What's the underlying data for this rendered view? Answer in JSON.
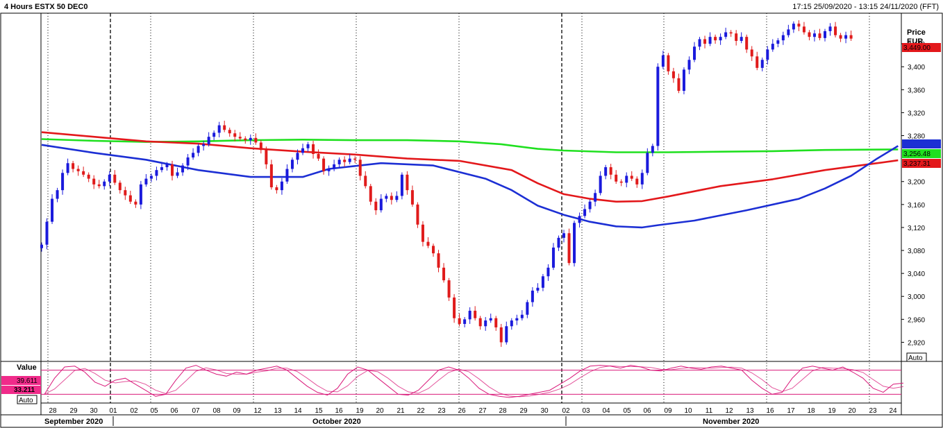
{
  "header": {
    "title": "4 Hours ESTX 50 DEC0",
    "range": "17:15 25/09/2020 - 13:15 24/11/2020 (FFT)"
  },
  "price_axis": {
    "label": "Price",
    "unit": "EUR",
    "auto_label": "Auto",
    "ticks": [
      "3,440",
      "3,400",
      "3,360",
      "3,320",
      "3,280",
      "3,200",
      "3,160",
      "3,120",
      "3,080",
      "3,040",
      "3,000",
      "2,960",
      "2,920"
    ]
  },
  "tags": {
    "last_price": "3,449.00",
    "ma_green": "3,256.48",
    "ma_red": "3,237.31"
  },
  "indicator": {
    "label": "Value",
    "value_1": "39.611",
    "value_2": "33.211",
    "auto_label": "Auto",
    "upper_level": 80,
    "lower_level": 20
  },
  "colors": {
    "up_candle": "#1a1adc",
    "down_candle": "#e01b1b",
    "ma_blue": "#1c2fd4",
    "ma_red": "#e3181b",
    "ma_green": "#1fe01f",
    "stoch": "#d9197a",
    "last_price_tag": "#e3181b",
    "blue_tag": "#1c2fd4",
    "green_tag": "#1fe01f",
    "red_tag": "#e3181b",
    "value_tag": "#f02b8a"
  },
  "chart_data": {
    "type": "candlestick",
    "instrument": "ESTX 50 DEC0",
    "timeframe": "4 Hours",
    "ylim": [
      2900,
      3480
    ],
    "grid": false,
    "x_ticks": [
      "28",
      "29",
      "30",
      "01",
      "02",
      "05",
      "06",
      "07",
      "08",
      "09",
      "12",
      "13",
      "14",
      "15",
      "16",
      "19",
      "20",
      "21",
      "22",
      "23",
      "26",
      "27",
      "28",
      "29",
      "30",
      "02",
      "03",
      "04",
      "05",
      "06",
      "09",
      "10",
      "11",
      "12",
      "13",
      "16",
      "17",
      "18",
      "19",
      "20",
      "23",
      "24"
    ],
    "month_labels": [
      "September 2020",
      "October 2020",
      "November 2020"
    ],
    "close_path": [
      [
        0,
        3090
      ],
      [
        1,
        3130
      ],
      [
        2,
        3170
      ],
      [
        3,
        3185
      ],
      [
        4,
        3215
      ],
      [
        5,
        3232
      ],
      [
        6,
        3222
      ],
      [
        7,
        3218
      ],
      [
        8,
        3212
      ],
      [
        9,
        3205
      ],
      [
        10,
        3195
      ],
      [
        11,
        3192
      ],
      [
        12,
        3200
      ],
      [
        13,
        3212
      ],
      [
        14,
        3198
      ],
      [
        15,
        3185
      ],
      [
        16,
        3176
      ],
      [
        17,
        3165
      ],
      [
        18,
        3160
      ],
      [
        19,
        3195
      ],
      [
        20,
        3205
      ],
      [
        21,
        3210
      ],
      [
        22,
        3220
      ],
      [
        23,
        3225
      ],
      [
        24,
        3230
      ],
      [
        25,
        3210
      ],
      [
        26,
        3216
      ],
      [
        27,
        3228
      ],
      [
        28,
        3242
      ],
      [
        29,
        3250
      ],
      [
        30,
        3262
      ],
      [
        31,
        3265
      ],
      [
        32,
        3278
      ],
      [
        33,
        3285
      ],
      [
        34,
        3298
      ],
      [
        35,
        3290
      ],
      [
        36,
        3284
      ],
      [
        37,
        3278
      ],
      [
        38,
        3275
      ],
      [
        39,
        3272
      ],
      [
        40,
        3276
      ],
      [
        41,
        3268
      ],
      [
        42,
        3255
      ],
      [
        43,
        3230
      ],
      [
        44,
        3190
      ],
      [
        45,
        3185
      ],
      [
        46,
        3200
      ],
      [
        47,
        3222
      ],
      [
        48,
        3238
      ],
      [
        49,
        3250
      ],
      [
        50,
        3258
      ],
      [
        51,
        3265
      ],
      [
        52,
        3248
      ],
      [
        53,
        3240
      ],
      [
        54,
        3218
      ],
      [
        55,
        3222
      ],
      [
        56,
        3230
      ],
      [
        57,
        3238
      ],
      [
        58,
        3234
      ],
      [
        59,
        3240
      ],
      [
        60,
        3238
      ],
      [
        61,
        3210
      ],
      [
        62,
        3192
      ],
      [
        63,
        3165
      ],
      [
        64,
        3150
      ],
      [
        65,
        3170
      ],
      [
        66,
        3175
      ],
      [
        67,
        3168
      ],
      [
        68,
        3175
      ],
      [
        69,
        3212
      ],
      [
        70,
        3185
      ],
      [
        71,
        3160
      ],
      [
        72,
        3125
      ],
      [
        73,
        3095
      ],
      [
        74,
        3088
      ],
      [
        75,
        3075
      ],
      [
        76,
        3050
      ],
      [
        77,
        3028
      ],
      [
        78,
        2998
      ],
      [
        79,
        2962
      ],
      [
        80,
        2952
      ],
      [
        81,
        2960
      ],
      [
        82,
        2975
      ],
      [
        83,
        2962
      ],
      [
        84,
        2948
      ],
      [
        85,
        2958
      ],
      [
        86,
        2962
      ],
      [
        87,
        2946
      ],
      [
        88,
        2920
      ],
      [
        89,
        2948
      ],
      [
        90,
        2958
      ],
      [
        91,
        2962
      ],
      [
        92,
        2968
      ],
      [
        93,
        2990
      ],
      [
        94,
        3010
      ],
      [
        95,
        3015
      ],
      [
        96,
        3035
      ],
      [
        97,
        3050
      ],
      [
        98,
        3085
      ],
      [
        99,
        3102
      ],
      [
        100,
        3110
      ],
      [
        101,
        3058
      ],
      [
        102,
        3128
      ],
      [
        103,
        3140
      ],
      [
        104,
        3152
      ],
      [
        105,
        3165
      ],
      [
        106,
        3180
      ],
      [
        107,
        3210
      ],
      [
        108,
        3225
      ],
      [
        109,
        3212
      ],
      [
        110,
        3200
      ],
      [
        111,
        3198
      ],
      [
        112,
        3210
      ],
      [
        113,
        3205
      ],
      [
        114,
        3195
      ],
      [
        115,
        3215
      ],
      [
        116,
        3250
      ],
      [
        117,
        3262
      ],
      [
        118,
        3400
      ],
      [
        119,
        3420
      ],
      [
        120,
        3392
      ],
      [
        121,
        3380
      ],
      [
        122,
        3358
      ],
      [
        123,
        3395
      ],
      [
        124,
        3412
      ],
      [
        125,
        3435
      ],
      [
        126,
        3448
      ],
      [
        127,
        3440
      ],
      [
        128,
        3452
      ],
      [
        129,
        3446
      ],
      [
        130,
        3452
      ],
      [
        131,
        3460
      ],
      [
        132,
        3458
      ],
      [
        133,
        3445
      ],
      [
        134,
        3452
      ],
      [
        135,
        3430
      ],
      [
        136,
        3418
      ],
      [
        137,
        3398
      ],
      [
        138,
        3412
      ],
      [
        139,
        3430
      ],
      [
        140,
        3440
      ],
      [
        141,
        3446
      ],
      [
        142,
        3455
      ],
      [
        143,
        3465
      ],
      [
        144,
        3475
      ],
      [
        145,
        3470
      ],
      [
        146,
        3460
      ],
      [
        147,
        3452
      ],
      [
        148,
        3458
      ],
      [
        149,
        3450
      ],
      [
        150,
        3462
      ],
      [
        151,
        3470
      ],
      [
        152,
        3455
      ],
      [
        153,
        3449
      ],
      [
        154,
        3455
      ],
      [
        155,
        3449
      ]
    ],
    "ma_blue": [
      [
        0,
        3264
      ],
      [
        10,
        3250
      ],
      [
        20,
        3238
      ],
      [
        30,
        3220
      ],
      [
        40,
        3208
      ],
      [
        50,
        3208
      ],
      [
        55,
        3222
      ],
      [
        65,
        3232
      ],
      [
        75,
        3228
      ],
      [
        85,
        3205
      ],
      [
        90,
        3185
      ],
      [
        95,
        3158
      ],
      [
        100,
        3142
      ],
      [
        105,
        3130
      ],
      [
        110,
        3122
      ],
      [
        115,
        3120
      ],
      [
        118,
        3124
      ],
      [
        125,
        3132
      ],
      [
        135,
        3150
      ],
      [
        145,
        3170
      ],
      [
        150,
        3188
      ],
      [
        155,
        3210
      ],
      [
        160,
        3240
      ],
      [
        164,
        3262
      ]
    ],
    "ma_red": [
      [
        0,
        3286
      ],
      [
        10,
        3278
      ],
      [
        20,
        3270
      ],
      [
        30,
        3266
      ],
      [
        40,
        3258
      ],
      [
        50,
        3252
      ],
      [
        60,
        3247
      ],
      [
        70,
        3240
      ],
      [
        80,
        3236
      ],
      [
        90,
        3220
      ],
      [
        95,
        3197
      ],
      [
        100,
        3178
      ],
      [
        105,
        3170
      ],
      [
        110,
        3165
      ],
      [
        115,
        3166
      ],
      [
        120,
        3174
      ],
      [
        130,
        3192
      ],
      [
        140,
        3204
      ],
      [
        150,
        3220
      ],
      [
        160,
        3232
      ],
      [
        164,
        3237
      ]
    ],
    "ma_green": [
      [
        0,
        3274
      ],
      [
        10,
        3271
      ],
      [
        20,
        3269
      ],
      [
        30,
        3270
      ],
      [
        40,
        3272
      ],
      [
        50,
        3273
      ],
      [
        60,
        3272
      ],
      [
        70,
        3272
      ],
      [
        80,
        3270
      ],
      [
        88,
        3265
      ],
      [
        95,
        3257
      ],
      [
        100,
        3254
      ],
      [
        110,
        3251
      ],
      [
        120,
        3251
      ],
      [
        130,
        3252
      ],
      [
        140,
        3253
      ],
      [
        150,
        3255
      ],
      [
        164,
        3256
      ]
    ]
  }
}
